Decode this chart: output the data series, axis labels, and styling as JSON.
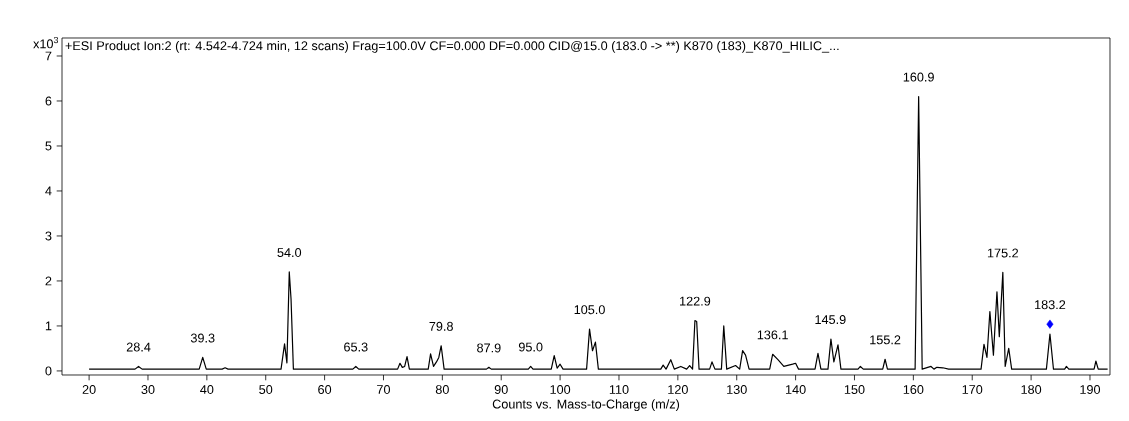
{
  "chart_data": {
    "type": "line",
    "title": "+ESI Product Ion:2 (rt: 4.542-4.724 min, 12 scans) Frag=100.0V CF=0.000 DF=0.000 CID@15.0 (183.0 -> **) K870 (183)_K870_HILIC_...",
    "xlabel": "Counts vs. Mass-to-Charge (m/z)",
    "ylabel": "x10$^{3}$",
    "xlim": [
      15.4,
      193.4
    ],
    "ylim": [
      -0.09,
      7.4
    ],
    "xticks": [
      20,
      30,
      40,
      50,
      60,
      70,
      80,
      90,
      100,
      110,
      120,
      130,
      140,
      150,
      160,
      170,
      180,
      190
    ],
    "yticks": [
      0,
      1,
      2,
      3,
      4,
      5,
      6,
      7
    ],
    "series": [
      {
        "color": "#000000",
        "marker": "none",
        "x": [
          20,
          27.8,
          28.4,
          29,
          38.7,
          39.3,
          39.9,
          42.6,
          43.1,
          43.6,
          52.6,
          53.2,
          53.6,
          54.0,
          54.3,
          54.7,
          64.8,
          65.3,
          65.8,
          72.4,
          72.8,
          73.2,
          73.6,
          74.0,
          74.4,
          77.6,
          78.0,
          78.5,
          79.0,
          79.4,
          79.8,
          80.3,
          87.5,
          87.9,
          88.3,
          94.6,
          95.0,
          95.4,
          98.5,
          99.0,
          99.5,
          100.0,
          100.5,
          104.5,
          105.0,
          105.5,
          106.0,
          106.5,
          117.1,
          117.5,
          118.0,
          118.8,
          119.4,
          120.5,
          121.5,
          122.0,
          122.5,
          122.9,
          123.2,
          123.6,
          125.4,
          125.8,
          126.3,
          127.4,
          127.8,
          128.3,
          129.8,
          130.5,
          131.0,
          131.5,
          132.1,
          135.6,
          136.1,
          137.0,
          138.0,
          139.5,
          140.0,
          140.5,
          143.3,
          143.8,
          144.3,
          145.5,
          146.0,
          146.5,
          147.2,
          147.7,
          150.6,
          151.0,
          151.5,
          154.8,
          155.2,
          155.6,
          160.3,
          160.9,
          161.5,
          163.0,
          163.5,
          164.0,
          165.0,
          166.0,
          171.5,
          172.0,
          172.5,
          173.0,
          173.6,
          174.2,
          174.6,
          175.2,
          175.6,
          176.2,
          176.7,
          182.6,
          183.2,
          183.8,
          185.7,
          186.0,
          186.4,
          190.7,
          191.0,
          191.4,
          193.0
        ],
        "values": [
          0.04,
          0.04,
          0.1,
          0.04,
          0.04,
          0.3,
          0.04,
          0.04,
          0.07,
          0.04,
          0.04,
          0.6,
          0.18,
          2.2,
          1.6,
          0.04,
          0.04,
          0.1,
          0.04,
          0.04,
          0.17,
          0.08,
          0.1,
          0.32,
          0.04,
          0.04,
          0.38,
          0.1,
          0.2,
          0.3,
          0.56,
          0.04,
          0.04,
          0.08,
          0.04,
          0.04,
          0.1,
          0.04,
          0.04,
          0.34,
          0.06,
          0.15,
          0.04,
          0.04,
          0.93,
          0.45,
          0.64,
          0.04,
          0.04,
          0.13,
          0.04,
          0.25,
          0.04,
          0.1,
          0.04,
          0.12,
          0.04,
          1.12,
          1.1,
          0.04,
          0.04,
          0.2,
          0.04,
          0.04,
          1.0,
          0.04,
          0.12,
          0.04,
          0.45,
          0.35,
          0.04,
          0.04,
          0.37,
          0.25,
          0.1,
          0.15,
          0.17,
          0.04,
          0.04,
          0.39,
          0.04,
          0.04,
          0.71,
          0.2,
          0.58,
          0.04,
          0.04,
          0.1,
          0.04,
          0.04,
          0.26,
          0.04,
          0.04,
          6.1,
          0.04,
          0.1,
          0.04,
          0.08,
          0.07,
          0.04,
          0.04,
          0.59,
          0.3,
          1.32,
          0.35,
          1.76,
          0.76,
          2.19,
          0.1,
          0.5,
          0.04,
          0.04,
          0.82,
          0.04,
          0.04,
          0.1,
          0.04,
          0.04,
          0.22,
          0.04,
          0.04
        ]
      },
      {
        "type": "scatter",
        "color": "#0000ff",
        "marker": "diamond",
        "x": [
          183.2
        ],
        "values": [
          1.04
        ]
      }
    ],
    "annotations": [
      {
        "text": "28.4",
        "x": 28.4,
        "y": 0.1
      },
      {
        "text": "39.3",
        "x": 39.3,
        "y": 0.3
      },
      {
        "text": "54.0",
        "x": 54.0,
        "y": 2.2
      },
      {
        "text": "65.3",
        "x": 65.3,
        "y": 0.1
      },
      {
        "text": "79.8",
        "x": 79.8,
        "y": 0.56
      },
      {
        "text": "87.9",
        "x": 87.9,
        "y": 0.08
      },
      {
        "text": "95.0",
        "x": 95.0,
        "y": 0.1
      },
      {
        "text": "105.0",
        "x": 105.0,
        "y": 0.93
      },
      {
        "text": "122.9",
        "x": 122.9,
        "y": 1.12
      },
      {
        "text": "136.1",
        "x": 136.1,
        "y": 0.37
      },
      {
        "text": "145.9",
        "x": 145.9,
        "y": 0.71
      },
      {
        "text": "155.2",
        "x": 155.2,
        "y": 0.26
      },
      {
        "text": "160.9",
        "x": 160.9,
        "y": 6.1
      },
      {
        "text": "175.2",
        "x": 175.2,
        "y": 2.19
      },
      {
        "text": "183.2",
        "x": 183.2,
        "y": 1.04
      }
    ]
  }
}
